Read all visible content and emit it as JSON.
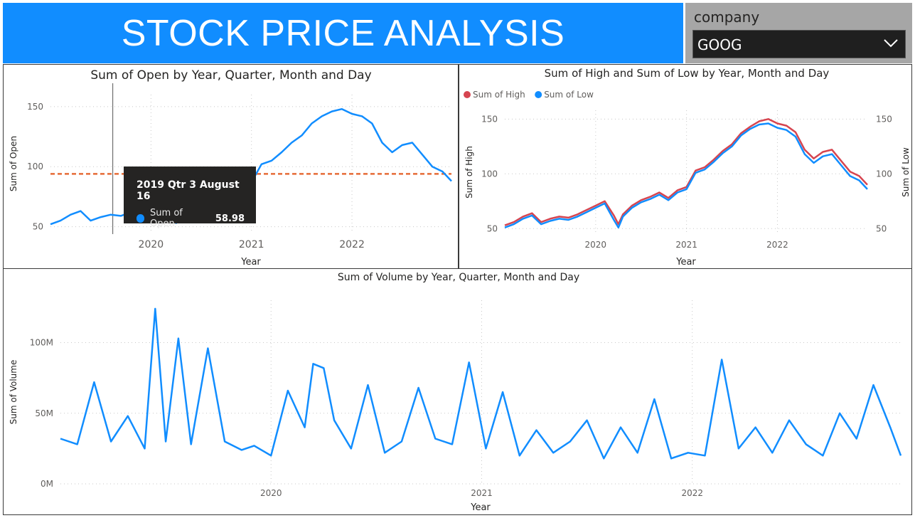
{
  "header": {
    "title": "STOCK PRICE ANALYSIS"
  },
  "slicer": {
    "label": "company",
    "selected": "GOOG",
    "icon": "chevron-down-icon"
  },
  "colors": {
    "accent": "#118DFF",
    "high": "#D64550",
    "low": "#118DFF",
    "reference": "#E66C37",
    "tooltip_bg": "#252423"
  },
  "tooltip": {
    "title": "2019 Qtr 3 August 16",
    "series": "Sum of Open",
    "value": "58.98"
  },
  "chart_data": [
    {
      "type": "line",
      "title": "Sum of Open by Year, Quarter, Month and Day",
      "xlabel": "Year",
      "ylabel": "Sum of Open",
      "x_ticks": [
        "2020",
        "2021",
        "2022"
      ],
      "y_ticks": [
        "50",
        "100",
        "150"
      ],
      "ylim": [
        45,
        160
      ],
      "xlim": [
        2019.0,
        2022.99
      ],
      "reference_line": {
        "value": 94
      },
      "x": [
        2019.0,
        2019.1,
        2019.2,
        2019.3,
        2019.4,
        2019.5,
        2019.6,
        2019.7,
        2019.8,
        2019.9,
        2020.0,
        2020.1,
        2020.2,
        2020.25,
        2020.3,
        2020.4,
        2020.5,
        2020.6,
        2020.7,
        2020.8,
        2020.9,
        2021.0,
        2021.1,
        2021.2,
        2021.3,
        2021.4,
        2021.5,
        2021.6,
        2021.7,
        2021.8,
        2021.9,
        2022.0,
        2022.1,
        2022.2,
        2022.3,
        2022.4,
        2022.5,
        2022.6,
        2022.7,
        2022.8,
        2022.9,
        2022.99
      ],
      "series": [
        {
          "name": "Sum of Open",
          "values": [
            52,
            55,
            60,
            63,
            55,
            58,
            60,
            59,
            62,
            66,
            70,
            74,
            60,
            53,
            62,
            70,
            75,
            78,
            82,
            77,
            84,
            87,
            102,
            105,
            112,
            120,
            126,
            136,
            142,
            146,
            148,
            144,
            142,
            136,
            120,
            112,
            118,
            120,
            110,
            100,
            96,
            88
          ]
        }
      ]
    },
    {
      "type": "line",
      "title": "Sum of High and Sum of Low by Year, Month and Day",
      "xlabel": "Year",
      "ylabel": "Sum of High",
      "ylabel_right": "Sum of Low",
      "legend": [
        "Sum of High",
        "Sum of Low"
      ],
      "legend_position": "top-left",
      "x_ticks": [
        "2020",
        "2021",
        "2022"
      ],
      "y_ticks": [
        "50",
        "100",
        "150"
      ],
      "ylim": [
        45,
        158
      ],
      "xlim": [
        2019.0,
        2022.99
      ],
      "x": [
        2019.0,
        2019.1,
        2019.2,
        2019.3,
        2019.4,
        2019.5,
        2019.6,
        2019.7,
        2019.8,
        2019.9,
        2020.0,
        2020.1,
        2020.2,
        2020.25,
        2020.3,
        2020.4,
        2020.5,
        2020.6,
        2020.7,
        2020.8,
        2020.9,
        2021.0,
        2021.1,
        2021.2,
        2021.3,
        2021.4,
        2021.5,
        2021.6,
        2021.7,
        2021.8,
        2021.9,
        2022.0,
        2022.1,
        2022.2,
        2022.3,
        2022.4,
        2022.5,
        2022.6,
        2022.7,
        2022.8,
        2022.9,
        2022.99
      ],
      "series": [
        {
          "name": "Sum of High",
          "values": [
            53,
            56,
            61,
            64,
            56,
            59,
            61,
            60,
            63,
            67,
            71,
            75,
            62,
            54,
            63,
            71,
            76,
            79,
            83,
            78,
            85,
            88,
            103,
            106,
            113,
            121,
            127,
            137,
            143,
            148,
            150,
            146,
            144,
            138,
            122,
            114,
            120,
            122,
            112,
            102,
            98,
            90
          ]
        },
        {
          "name": "Sum of Low",
          "values": [
            51,
            54,
            59,
            62,
            54,
            57,
            59,
            58,
            61,
            65,
            69,
            73,
            58,
            51,
            61,
            69,
            74,
            77,
            81,
            76,
            83,
            86,
            101,
            104,
            111,
            119,
            125,
            135,
            141,
            145,
            146,
            142,
            140,
            134,
            118,
            110,
            116,
            118,
            108,
            98,
            94,
            86
          ]
        }
      ]
    },
    {
      "type": "line",
      "title": "Sum of Volume by Year, Quarter, Month and Day",
      "xlabel": "Year",
      "ylabel": "Sum of Volume",
      "x_ticks": [
        "2020",
        "2021",
        "2022"
      ],
      "y_ticks": [
        "0M",
        "50M",
        "100M"
      ],
      "ylim": [
        0,
        130
      ],
      "xlim": [
        2019.0,
        2022.99
      ],
      "x": [
        2019.0,
        2019.08,
        2019.16,
        2019.24,
        2019.32,
        2019.4,
        2019.45,
        2019.5,
        2019.56,
        2019.62,
        2019.7,
        2019.78,
        2019.86,
        2019.92,
        2020.0,
        2020.08,
        2020.16,
        2020.2,
        2020.25,
        2020.3,
        2020.38,
        2020.46,
        2020.54,
        2020.62,
        2020.7,
        2020.78,
        2020.86,
        2020.94,
        2021.02,
        2021.1,
        2021.18,
        2021.26,
        2021.34,
        2021.42,
        2021.5,
        2021.58,
        2021.66,
        2021.74,
        2021.82,
        2021.9,
        2021.98,
        2022.06,
        2022.14,
        2022.22,
        2022.3,
        2022.38,
        2022.46,
        2022.54,
        2022.62,
        2022.7,
        2022.78,
        2022.86,
        2022.94,
        2022.99
      ],
      "series": [
        {
          "name": "Sum of Volume",
          "values": [
            32,
            28,
            72,
            30,
            48,
            25,
            124,
            30,
            103,
            28,
            96,
            30,
            24,
            27,
            20,
            66,
            40,
            85,
            82,
            45,
            25,
            70,
            22,
            30,
            68,
            32,
            28,
            86,
            25,
            65,
            20,
            38,
            22,
            30,
            45,
            18,
            40,
            22,
            60,
            18,
            22,
            20,
            88,
            25,
            40,
            22,
            45,
            28,
            20,
            50,
            32,
            70,
            40,
            20
          ]
        }
      ]
    }
  ]
}
